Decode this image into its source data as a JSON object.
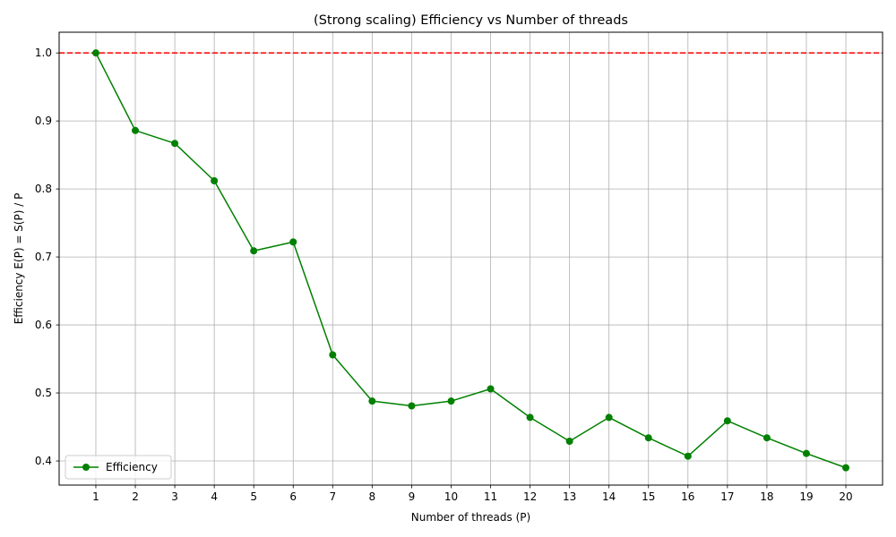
{
  "chart_data": {
    "type": "line",
    "title": "(Strong scaling) Efficiency vs Number of threads",
    "xlabel": "Number of threads (P)",
    "ylabel": "Efficiency E(P) = S(P) / P",
    "x": [
      1,
      2,
      3,
      4,
      5,
      6,
      7,
      8,
      9,
      10,
      11,
      12,
      13,
      14,
      15,
      16,
      17,
      18,
      19,
      20
    ],
    "series": [
      {
        "name": "Efficiency",
        "color": "#008000",
        "marker": "circle",
        "values": [
          1.0,
          0.886,
          0.867,
          0.812,
          0.709,
          0.722,
          0.556,
          0.488,
          0.481,
          0.488,
          0.506,
          0.464,
          0.429,
          0.464,
          0.434,
          0.407,
          0.459,
          0.434,
          0.411,
          0.39
        ]
      }
    ],
    "reference_line": {
      "y": 1.0,
      "color": "#ff0000",
      "style": "dashed"
    },
    "xlim": [
      0.07,
      20.93
    ],
    "ylim": [
      0.3645,
      1.0305
    ],
    "xticks": [
      1,
      2,
      3,
      4,
      5,
      6,
      7,
      8,
      9,
      10,
      11,
      12,
      13,
      14,
      15,
      16,
      17,
      18,
      19,
      20
    ],
    "yticks": [
      "0.4",
      "0.5",
      "0.6",
      "0.7",
      "0.8",
      "0.9",
      "1.0"
    ],
    "grid": true,
    "legend_position": "lower-left"
  }
}
